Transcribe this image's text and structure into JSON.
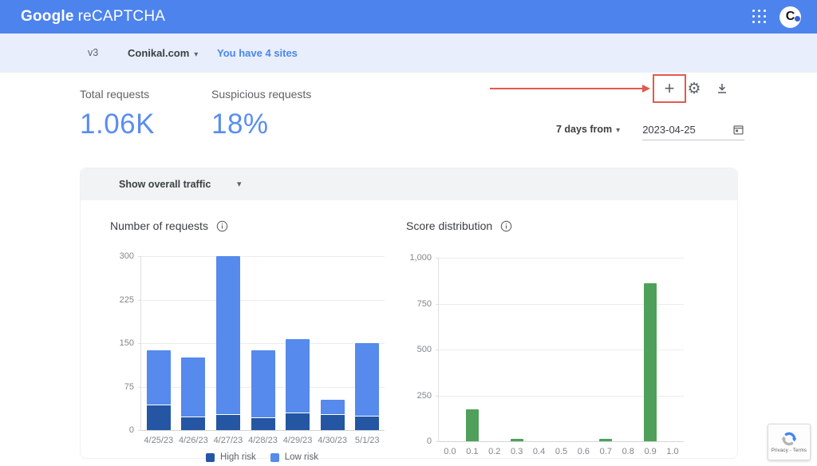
{
  "header": {
    "brand_google": "Google",
    "brand_product": "reCAPTCHA"
  },
  "avatar": {
    "letter": "C"
  },
  "toolbar": {
    "version": "v3",
    "site_name": "Conikal.com",
    "sites_link": "You have 4 sites"
  },
  "icons": {
    "caret": "▾",
    "plus": "+",
    "gear": "⚙"
  },
  "stats": [
    {
      "label": "Total requests",
      "value": "1.06K"
    },
    {
      "label": "Suspicious requests",
      "value": "18%"
    }
  ],
  "date_filter": {
    "range_label": "7 days from",
    "date_value": "2023-04-25"
  },
  "traffic_dropdown": {
    "label": "Show overall traffic"
  },
  "badge": {
    "privacy_terms": "Privacy - Terms"
  },
  "colors": {
    "header_blue": "#4d83ec",
    "accent_blue": "#5a8df0",
    "annotation_red": "#e25a4e",
    "high_risk": "#2456a4",
    "low_risk": "#568aec",
    "score_green": "#4ea05a"
  },
  "chart_data": [
    {
      "type": "bar",
      "stacked": true,
      "title": "Number of requests",
      "categories": [
        "4/25/23",
        "4/26/23",
        "4/27/23",
        "4/28/23",
        "4/29/23",
        "4/30/23",
        "5/1/23"
      ],
      "series": [
        {
          "name": "High risk",
          "color": "#2456a4",
          "values": [
            43,
            22,
            26,
            21,
            29,
            26,
            23
          ]
        },
        {
          "name": "Low risk",
          "color": "#568aec",
          "values": [
            95,
            103,
            274,
            117,
            128,
            27,
            127
          ]
        }
      ],
      "totals": [
        138,
        125,
        300,
        138,
        157,
        53,
        150
      ],
      "ylim": [
        0,
        300
      ],
      "yticks": [
        0,
        75,
        150,
        225,
        300
      ],
      "grid": true,
      "legend_position": "bottom"
    },
    {
      "type": "bar",
      "stacked": false,
      "title": "Score distribution",
      "categories": [
        "0.0",
        "0.1",
        "0.2",
        "0.3",
        "0.4",
        "0.5",
        "0.6",
        "0.7",
        "0.8",
        "0.9",
        "1.0"
      ],
      "values": [
        0,
        175,
        0,
        12,
        0,
        0,
        0,
        12,
        0,
        860,
        0
      ],
      "color": "#4ea05a",
      "ylim": [
        0,
        1000
      ],
      "yticks": [
        0,
        250,
        500,
        750,
        1000
      ],
      "ytick_labels": [
        "0",
        "250",
        "500",
        "750",
        "1,000"
      ],
      "grid": true,
      "legend_position": "none"
    }
  ]
}
